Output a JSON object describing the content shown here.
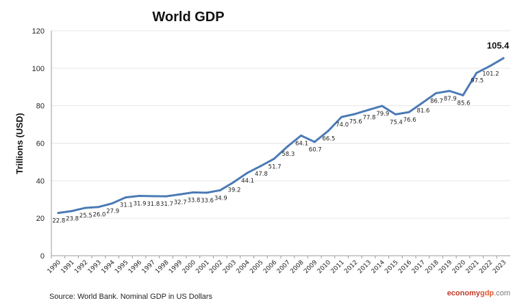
{
  "chart_data": {
    "type": "line",
    "title": "World GDP",
    "ylabel": "Trillions (USD)",
    "xlabel": "",
    "ylim": [
      0,
      120
    ],
    "yticks": [
      0,
      20,
      40,
      60,
      80,
      100,
      120
    ],
    "grid": true,
    "legend": "none",
    "line_color": "#4a7ab5",
    "categories": [
      "1990",
      "1991",
      "1992",
      "1993",
      "1994",
      "1995",
      "1996",
      "1997",
      "1998",
      "1999",
      "2000",
      "2001",
      "2002",
      "2003",
      "2004",
      "2005",
      "2006",
      "2007",
      "2008",
      "2009",
      "2010",
      "2011",
      "2012",
      "2013",
      "2014",
      "2015",
      "2016",
      "2017",
      "2018",
      "2019",
      "2020",
      "2021",
      "2022",
      "2023"
    ],
    "values": [
      22.8,
      23.8,
      25.5,
      26.0,
      27.9,
      31.1,
      31.9,
      31.8,
      31.7,
      32.7,
      33.8,
      33.6,
      34.9,
      39.2,
      44.1,
      47.8,
      51.7,
      58.3,
      64.1,
      60.7,
      66.5,
      74.0,
      75.6,
      77.8,
      79.9,
      75.4,
      76.6,
      81.6,
      86.7,
      87.9,
      85.6,
      97.5,
      101.2,
      105.4
    ],
    "labels": [
      "22.8",
      "23.8",
      "25.5",
      "26.0",
      "27.9",
      "31.1",
      "31.9",
      "31.8",
      "31.7",
      "32.7",
      "33.8",
      "33.6",
      "34.9",
      "39.2",
      "44.1",
      "47.8",
      "51.7",
      "58.3",
      "64.1",
      "60.7",
      "66.5",
      "74.0",
      "75.6",
      "77.8",
      "79.9",
      "75.4",
      "76.6",
      "81.6",
      "86.7",
      "87.9",
      "85.6",
      "97.5",
      "101.2",
      "105.4"
    ]
  },
  "footer": {
    "source": "Source: World Bank.  Nominal GDP  in US Dollars",
    "brand_part1": "economy",
    "brand_part2": "gdp",
    "brand_part3": ".com",
    "brand_colors": [
      "#c0392b",
      "#e0572f",
      "#666666"
    ]
  }
}
